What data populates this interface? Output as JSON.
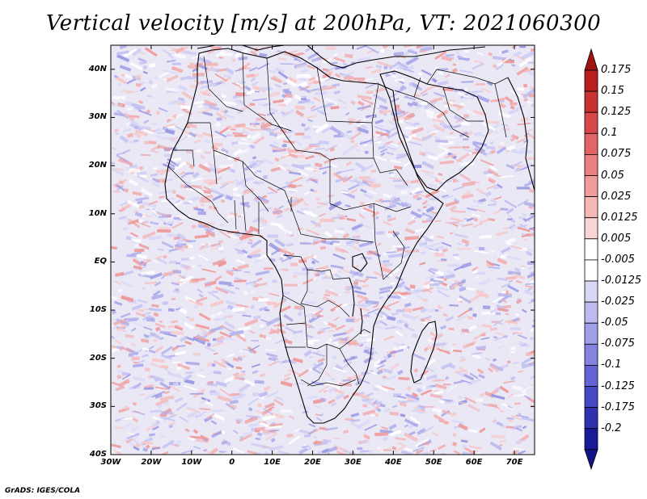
{
  "title": "Vertical velocity [m/s] at 200hPa, VT: 2021060300",
  "credit": "GrADS: IGES/COLA",
  "map": {
    "lon_range": [
      -30,
      75
    ],
    "lat_range": [
      -40,
      45
    ],
    "lat_ticks": [
      {
        "value": 40,
        "label": "40N"
      },
      {
        "value": 30,
        "label": "30N"
      },
      {
        "value": 20,
        "label": "20N"
      },
      {
        "value": 10,
        "label": "10N"
      },
      {
        "value": 0,
        "label": "EQ"
      },
      {
        "value": -10,
        "label": "10S"
      },
      {
        "value": -20,
        "label": "20S"
      },
      {
        "value": -30,
        "label": "30S"
      },
      {
        "value": -40,
        "label": "40S"
      }
    ],
    "lon_ticks": [
      {
        "value": -30,
        "label": "30W"
      },
      {
        "value": -20,
        "label": "20W"
      },
      {
        "value": -10,
        "label": "10W"
      },
      {
        "value": 0,
        "label": "0"
      },
      {
        "value": 10,
        "label": "10E"
      },
      {
        "value": 20,
        "label": "20E"
      },
      {
        "value": 30,
        "label": "30E"
      },
      {
        "value": 40,
        "label": "40E"
      },
      {
        "value": 50,
        "label": "50E"
      },
      {
        "value": 60,
        "label": "60E"
      },
      {
        "value": 70,
        "label": "70E"
      }
    ],
    "ocean_tint": "#e9e6f5",
    "coastline_color": "#000000"
  },
  "colorbar": {
    "labels": [
      "0.175",
      "0.15",
      "0.125",
      "0.1",
      "0.075",
      "0.05",
      "0.025",
      "0.0125",
      "0.005",
      "-0.005",
      "-0.0125",
      "-0.025",
      "-0.05",
      "-0.075",
      "-0.1",
      "-0.125",
      "-0.175",
      "-0.2"
    ],
    "colors": [
      "#b81e1e",
      "#c83232",
      "#d84848",
      "#e26464",
      "#ea8080",
      "#f09c9c",
      "#f5b8b8",
      "#f9d4d4",
      "#ffffff",
      "#ffffff",
      "#d8d8f6",
      "#bcbcf0",
      "#a0a0e8",
      "#8484e0",
      "#6464d4",
      "#4848c4",
      "#3030b0",
      "#1a1a98"
    ],
    "top_arrow_color": "#a01414",
    "bottom_arrow_color": "#14148a"
  }
}
